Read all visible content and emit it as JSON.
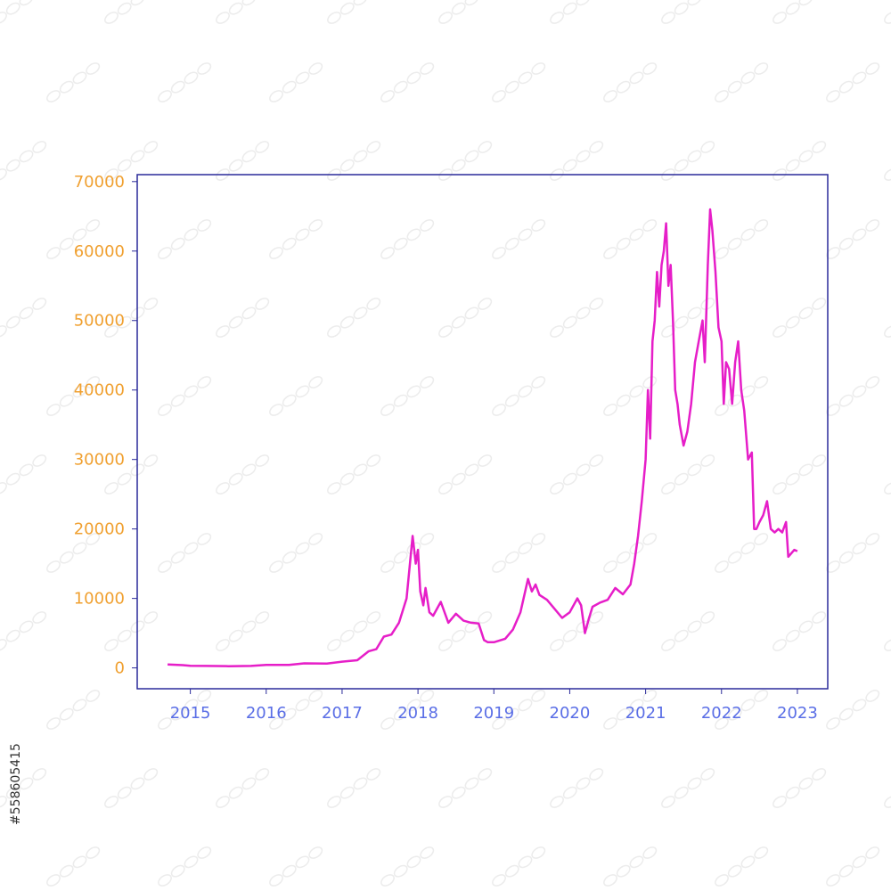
{
  "stock_id": "#558605415",
  "colors": {
    "line": "#e61ec8",
    "frame": "#2a2a9a",
    "ytick": "#f0a030",
    "xtick": "#5a6ee6"
  },
  "chart_data": {
    "type": "line",
    "title": "",
    "xlabel": "",
    "ylabel": "",
    "xlim": [
      2014.3,
      2023.4
    ],
    "ylim": [
      -3000,
      71000
    ],
    "yticks": [
      0,
      10000,
      20000,
      30000,
      40000,
      50000,
      60000,
      70000
    ],
    "xticks": [
      2015,
      2016,
      2017,
      2018,
      2019,
      2020,
      2021,
      2022,
      2023
    ],
    "ytick_labels": [
      "0",
      "10000",
      "20000",
      "30000",
      "40000",
      "50000",
      "60000",
      "70000"
    ],
    "xtick_labels": [
      "2015",
      "2016",
      "2017",
      "2018",
      "2019",
      "2020",
      "2021",
      "2022",
      "2023"
    ],
    "grid": false,
    "series": [
      {
        "x": [
          2014.7,
          2014.9,
          2015.0,
          2015.2,
          2015.5,
          2015.8,
          2016.0,
          2016.3,
          2016.5,
          2016.8,
          2017.0,
          2017.2,
          2017.35,
          2017.45,
          2017.55,
          2017.65,
          2017.75,
          2017.85,
          2017.93,
          2017.97,
          2018.0,
          2018.03,
          2018.07,
          2018.1,
          2018.15,
          2018.2,
          2018.3,
          2018.4,
          2018.5,
          2018.6,
          2018.7,
          2018.8,
          2018.87,
          2018.92,
          2019.0,
          2019.15,
          2019.25,
          2019.35,
          2019.45,
          2019.5,
          2019.55,
          2019.6,
          2019.7,
          2019.8,
          2019.9,
          2020.0,
          2020.1,
          2020.15,
          2020.2,
          2020.25,
          2020.3,
          2020.4,
          2020.5,
          2020.6,
          2020.7,
          2020.8,
          2020.85,
          2020.9,
          2020.95,
          2021.0,
          2021.03,
          2021.06,
          2021.09,
          2021.12,
          2021.15,
          2021.18,
          2021.21,
          2021.24,
          2021.27,
          2021.3,
          2021.33,
          2021.36,
          2021.39,
          2021.42,
          2021.45,
          2021.5,
          2021.55,
          2021.6,
          2021.65,
          2021.7,
          2021.75,
          2021.78,
          2021.82,
          2021.85,
          2021.88,
          2021.92,
          2021.96,
          2022.0,
          2022.03,
          2022.06,
          2022.1,
          2022.14,
          2022.18,
          2022.22,
          2022.26,
          2022.3,
          2022.35,
          2022.4,
          2022.43,
          2022.46,
          2022.5,
          2022.55,
          2022.6,
          2022.65,
          2022.7,
          2022.75,
          2022.8,
          2022.85,
          2022.88,
          2022.92,
          2022.96,
          2023.0
        ],
        "y": [
          500,
          400,
          300,
          280,
          250,
          280,
          430,
          420,
          650,
          620,
          900,
          1100,
          2400,
          2700,
          4500,
          4800,
          6500,
          10000,
          19000,
          15000,
          17000,
          11000,
          9000,
          11500,
          8000,
          7500,
          9500,
          6500,
          7800,
          6800,
          6500,
          6400,
          4000,
          3700,
          3700,
          4200,
          5500,
          8000,
          12800,
          11000,
          12000,
          10500,
          9800,
          8500,
          7200,
          8000,
          10000,
          9000,
          5000,
          7000,
          8800,
          9400,
          9800,
          11500,
          10600,
          12000,
          15000,
          19000,
          24000,
          30000,
          40000,
          33000,
          47000,
          50000,
          57000,
          52000,
          58000,
          60000,
          64000,
          55000,
          58000,
          50000,
          40000,
          38000,
          35000,
          32000,
          34000,
          38000,
          44000,
          47000,
          50000,
          44000,
          58000,
          66000,
          63000,
          57000,
          49000,
          47000,
          38000,
          44000,
          43000,
          38000,
          44000,
          47000,
          40000,
          37000,
          30000,
          31000,
          20000,
          20000,
          21000,
          22000,
          24000,
          20000,
          19500,
          20000,
          19500,
          21000,
          16000,
          16500,
          17000,
          16800
        ]
      }
    ]
  }
}
